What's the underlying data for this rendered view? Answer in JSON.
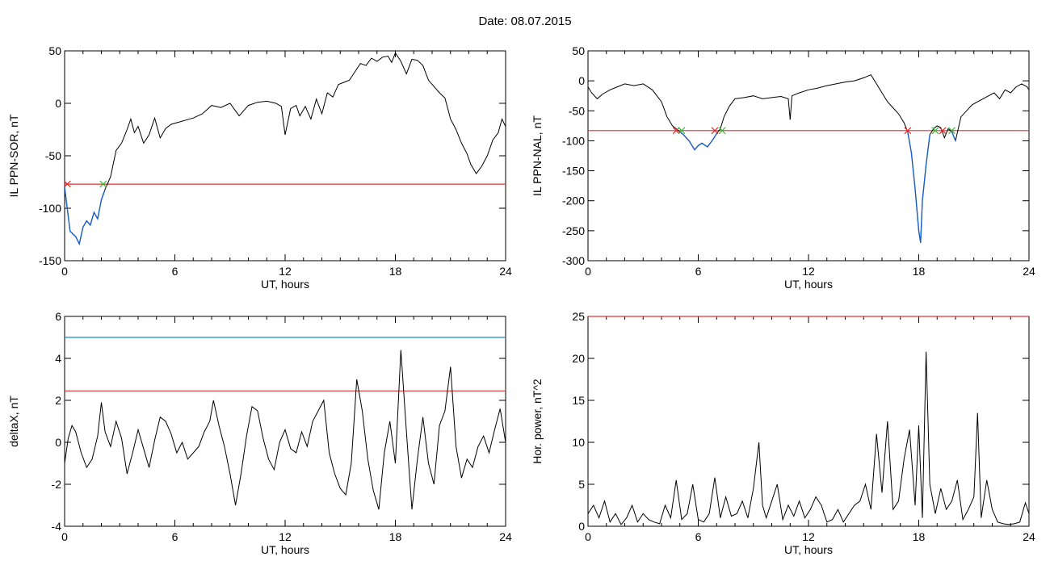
{
  "header": {
    "date_label": "Date:  08.07.2015"
  },
  "chart_data": [
    {
      "type": "line",
      "ylabel": "IL PPN-SOR, nT",
      "xlabel": "UT, hours",
      "xlim": [
        0,
        24
      ],
      "ylim": [
        -150,
        50
      ],
      "xticks": [
        0,
        6,
        12,
        18,
        24
      ],
      "yticks": [
        -150,
        -100,
        -50,
        0,
        50
      ],
      "threshold": -77,
      "series": [
        {
          "color": "#000000",
          "x": [
            0,
            0.3,
            0.6,
            0.8,
            1.0,
            1.2,
            1.4,
            1.6,
            1.8,
            2.0,
            2.2,
            2.5,
            2.8,
            3.1,
            3.4,
            3.6,
            3.8,
            4.0,
            4.3,
            4.6,
            4.9,
            5.2,
            5.5,
            5.8,
            6.2,
            6.6,
            7.0,
            7.5,
            8.0,
            8.5,
            9.0,
            9.5,
            10.0,
            10.5,
            11.0,
            11.5,
            11.8,
            12.0,
            12.3,
            12.6,
            12.8,
            13.1,
            13.4,
            13.7,
            14.0,
            14.3,
            14.6,
            14.9,
            15.2,
            15.5,
            15.8,
            16.1,
            16.4,
            16.7,
            17.0,
            17.3,
            17.6,
            17.8,
            18.0,
            18.3,
            18.6,
            18.9,
            19.2,
            19.5,
            19.8,
            20.1,
            20.4,
            20.7,
            21.0,
            21.3,
            21.6,
            21.9,
            22.1,
            22.4,
            22.7,
            23.0,
            23.3,
            23.6,
            23.8,
            24.0
          ],
          "y": [
            -80,
            -122,
            -127,
            -134,
            -118,
            -112,
            -116,
            -104,
            -110,
            -92,
            -82,
            -70,
            -45,
            -38,
            -25,
            -15,
            -28,
            -22,
            -38,
            -30,
            -14,
            -33,
            -24,
            -20,
            -18,
            -16,
            -14,
            -10,
            -2,
            -4,
            0,
            -12,
            -2,
            1,
            2,
            0,
            -3,
            -30,
            -5,
            -2,
            -12,
            -3,
            -15,
            4,
            -10,
            10,
            6,
            18,
            20,
            22,
            30,
            38,
            36,
            43,
            40,
            44,
            45,
            39,
            48,
            40,
            28,
            42,
            41,
            36,
            22,
            16,
            10,
            5,
            -15,
            -25,
            -38,
            -48,
            -58,
            -67,
            -60,
            -50,
            -35,
            -28,
            -15,
            -22
          ]
        }
      ],
      "markers": [
        0.15,
        2.1
      ]
    },
    {
      "type": "line",
      "ylabel": "IL PPN-NAL, nT",
      "xlabel": "UT, hours",
      "xlim": [
        0,
        24
      ],
      "ylim": [
        -300,
        50
      ],
      "xticks": [
        0,
        6,
        12,
        18,
        24
      ],
      "yticks": [
        -300,
        -250,
        -200,
        -150,
        -100,
        -50,
        0,
        50
      ],
      "threshold": -83,
      "series": [
        {
          "color": "#000000",
          "x": [
            0,
            0.2,
            0.5,
            0.8,
            1.2,
            1.6,
            2.0,
            2.5,
            3.0,
            3.5,
            4.0,
            4.3,
            4.6,
            4.8,
            5.0,
            5.2,
            5.5,
            5.8,
            6.0,
            6.2,
            6.5,
            6.8,
            7.0,
            7.2,
            7.4,
            7.7,
            8.0,
            8.5,
            9.0,
            9.5,
            10.0,
            10.5,
            10.9,
            11.0,
            11.1,
            11.5,
            12.0,
            12.5,
            13.0,
            13.5,
            14.0,
            14.5,
            15.0,
            15.4,
            15.7,
            16.0,
            16.3,
            16.6,
            16.9,
            17.2,
            17.4,
            17.6,
            17.8,
            18.0,
            18.1,
            18.2,
            18.4,
            18.6,
            18.8,
            19.0,
            19.2,
            19.4,
            19.6,
            19.8,
            20.0,
            20.3,
            20.6,
            20.9,
            21.2,
            21.5,
            21.8,
            22.1,
            22.4,
            22.7,
            23.0,
            23.3,
            23.6,
            23.9,
            24.0
          ],
          "y": [
            -10,
            -20,
            -30,
            -22,
            -15,
            -10,
            -5,
            -8,
            -5,
            -15,
            -35,
            -60,
            -75,
            -80,
            -85,
            -90,
            -100,
            -115,
            -108,
            -104,
            -110,
            -98,
            -88,
            -80,
            -60,
            -42,
            -30,
            -28,
            -25,
            -30,
            -28,
            -26,
            -30,
            -65,
            -25,
            -20,
            -15,
            -12,
            -8,
            -5,
            -2,
            0,
            5,
            10,
            -5,
            -20,
            -35,
            -45,
            -55,
            -70,
            -85,
            -120,
            -180,
            -250,
            -270,
            -200,
            -140,
            -90,
            -80,
            -75,
            -78,
            -95,
            -80,
            -85,
            -100,
            -60,
            -50,
            -40,
            -35,
            -30,
            -25,
            -20,
            -30,
            -15,
            -20,
            -10,
            -5,
            -10,
            -15
          ]
        }
      ],
      "markers": [
        4.8,
        5.1,
        6.9,
        7.3,
        17.4,
        18.9,
        19.3,
        19.8
      ]
    },
    {
      "type": "line",
      "ylabel": "deltaX, nT",
      "xlabel": "UT, hours",
      "xlim": [
        0,
        24
      ],
      "ylim": [
        -4,
        6
      ],
      "xticks": [
        0,
        6,
        12,
        18,
        24
      ],
      "yticks": [
        -4,
        -2,
        0,
        2,
        4,
        6
      ],
      "hlines": [
        {
          "value": 5.0,
          "color": "#1f8fb4"
        },
        {
          "value": 2.45,
          "color": "#e03030"
        }
      ],
      "series": [
        {
          "color": "#000000",
          "x": [
            0,
            0.2,
            0.4,
            0.6,
            0.9,
            1.2,
            1.5,
            1.8,
            2.0,
            2.2,
            2.5,
            2.8,
            3.1,
            3.4,
            3.7,
            4.0,
            4.3,
            4.6,
            4.9,
            5.2,
            5.5,
            5.8,
            6.1,
            6.4,
            6.7,
            7.0,
            7.3,
            7.6,
            7.9,
            8.1,
            8.4,
            8.7,
            9.0,
            9.3,
            9.6,
            9.9,
            10.2,
            10.5,
            10.8,
            11.1,
            11.4,
            11.7,
            12.0,
            12.3,
            12.6,
            12.9,
            13.2,
            13.5,
            13.8,
            14.1,
            14.4,
            14.7,
            15.0,
            15.3,
            15.6,
            15.9,
            16.2,
            16.5,
            16.8,
            17.1,
            17.4,
            17.7,
            18.0,
            18.3,
            18.6,
            18.9,
            19.2,
            19.5,
            19.8,
            20.1,
            20.4,
            20.7,
            21.0,
            21.3,
            21.6,
            21.9,
            22.2,
            22.5,
            22.8,
            23.1,
            23.4,
            23.7,
            24.0
          ],
          "y": [
            -1.0,
            0.2,
            0.8,
            0.5,
            -0.5,
            -1.2,
            -0.8,
            0.3,
            1.9,
            0.5,
            -0.2,
            1.0,
            0.2,
            -1.5,
            -0.5,
            0.6,
            -0.3,
            -1.2,
            0.1,
            1.2,
            1.0,
            0.4,
            -0.5,
            0.0,
            -0.8,
            -0.5,
            -0.2,
            0.5,
            1.0,
            2.0,
            0.8,
            -0.2,
            -1.5,
            -3.0,
            -1.5,
            0.3,
            1.7,
            1.5,
            0.2,
            -0.8,
            -1.3,
            0.0,
            0.6,
            -0.3,
            -0.5,
            0.5,
            -0.2,
            1.0,
            1.5,
            2.0,
            -0.5,
            -1.5,
            -2.2,
            -2.5,
            -1.0,
            3.0,
            1.5,
            -0.8,
            -2.3,
            -3.2,
            -0.5,
            1.0,
            -1.0,
            4.4,
            0.5,
            -3.2,
            -0.8,
            1.2,
            -1.0,
            -2.0,
            0.8,
            1.5,
            3.6,
            -0.2,
            -1.7,
            -0.8,
            -1.2,
            -0.2,
            0.3,
            -0.5,
            0.6,
            1.6,
            0.0
          ]
        }
      ]
    },
    {
      "type": "line",
      "ylabel": "Hor. power, nT^2",
      "xlabel": "UT, hours",
      "xlim": [
        0,
        24
      ],
      "ylim": [
        0,
        25
      ],
      "xticks": [
        0,
        6,
        12,
        18,
        24
      ],
      "yticks": [
        0,
        5,
        10,
        15,
        20,
        25
      ],
      "hlines": [
        {
          "value": 25,
          "color": "#e03030"
        }
      ],
      "series": [
        {
          "color": "#000000",
          "x": [
            0,
            0.3,
            0.6,
            0.9,
            1.2,
            1.5,
            1.8,
            2.1,
            2.4,
            2.7,
            3.0,
            3.3,
            3.6,
            3.9,
            4.2,
            4.5,
            4.8,
            5.1,
            5.4,
            5.7,
            6.0,
            6.3,
            6.6,
            6.9,
            7.2,
            7.5,
            7.8,
            8.1,
            8.4,
            8.7,
            9.0,
            9.3,
            9.5,
            9.7,
            10.0,
            10.3,
            10.6,
            10.9,
            11.2,
            11.5,
            11.8,
            12.1,
            12.4,
            12.7,
            13.0,
            13.3,
            13.6,
            13.9,
            14.2,
            14.5,
            14.8,
            15.1,
            15.4,
            15.7,
            16.0,
            16.3,
            16.6,
            16.9,
            17.2,
            17.5,
            17.8,
            18.0,
            18.2,
            18.4,
            18.6,
            18.9,
            19.2,
            19.5,
            19.8,
            20.1,
            20.4,
            20.7,
            21.0,
            21.2,
            21.4,
            21.7,
            22.0,
            22.3,
            22.6,
            22.9,
            23.2,
            23.5,
            23.8,
            24.0
          ],
          "y": [
            1.5,
            2.5,
            1.0,
            3.0,
            0.5,
            1.5,
            0.2,
            1.0,
            2.5,
            0.5,
            1.5,
            0.8,
            0.5,
            0.3,
            2.5,
            1.0,
            5.5,
            0.8,
            1.5,
            5.0,
            0.8,
            0.5,
            1.5,
            5.8,
            1.0,
            3.5,
            1.2,
            1.5,
            3.0,
            1.0,
            4.5,
            10.0,
            2.5,
            1.0,
            3.0,
            5.0,
            0.8,
            2.5,
            1.2,
            3.0,
            1.0,
            2.0,
            3.5,
            2.5,
            0.5,
            0.8,
            2.0,
            0.5,
            1.5,
            2.5,
            3.0,
            5.0,
            2.0,
            11.0,
            4.0,
            12.5,
            2.0,
            3.0,
            8.0,
            11.5,
            2.5,
            12.0,
            1.0,
            20.8,
            5.0,
            1.5,
            4.5,
            2.0,
            3.0,
            5.5,
            0.8,
            2.0,
            3.5,
            13.5,
            1.0,
            5.5,
            2.0,
            0.5,
            0.3,
            0.2,
            0.3,
            0.5,
            2.8,
            1.5
          ]
        }
      ]
    }
  ]
}
